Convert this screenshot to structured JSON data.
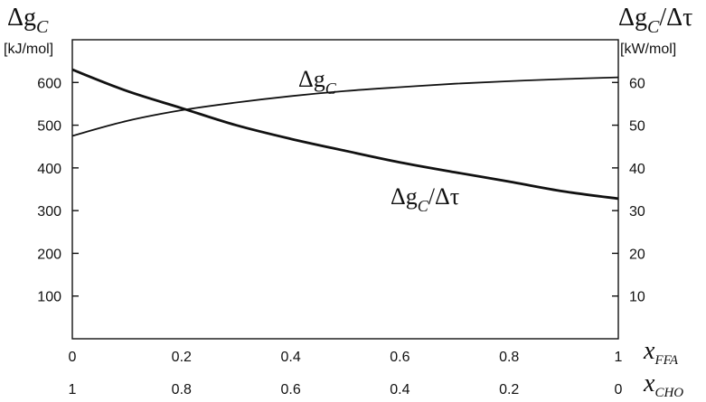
{
  "chart_data": {
    "type": "line",
    "x_primary": {
      "symbol": "x",
      "subscript": "FFA",
      "ticks": [
        0,
        0.2,
        0.4,
        0.6,
        0.8,
        1
      ],
      "tick_labels": [
        "0",
        "0.2",
        "0.4",
        "0.6",
        "0.8",
        "1"
      ],
      "range": [
        0,
        1
      ]
    },
    "x_secondary": {
      "symbol": "x",
      "subscript": "CHO",
      "tick_labels": [
        "1",
        "0.8",
        "0.6",
        "0.4",
        "0.2",
        "0"
      ]
    },
    "y_left": {
      "symbol": "Δg",
      "subscript": "C",
      "unit": "[kJ/mol]",
      "ticks": [
        100,
        200,
        300,
        400,
        500,
        600
      ],
      "tick_labels": [
        "100",
        "200",
        "300",
        "400",
        "500",
        "600"
      ],
      "range": [
        0,
        700
      ]
    },
    "y_right": {
      "symbol": "Δg",
      "subscript": "C",
      "suffix": "/Δτ",
      "unit": "[kW/mol]",
      "ticks": [
        10,
        20,
        30,
        40,
        50,
        60
      ],
      "tick_labels": [
        "10",
        "20",
        "30",
        "40",
        "50",
        "60"
      ],
      "range": [
        0,
        70
      ]
    },
    "series": [
      {
        "name": "Δg_C",
        "label_symbol": "Δg",
        "label_subscript": "C",
        "label_suffix": "",
        "axis": "left",
        "x": [
          0,
          0.1,
          0.2,
          0.3,
          0.4,
          0.5,
          0.6,
          0.7,
          0.8,
          0.9,
          1.0
        ],
        "y": [
          475,
          510,
          535,
          553,
          568,
          580,
          589,
          597,
          603,
          608,
          612
        ]
      },
      {
        "name": "Δg_C/Δτ",
        "label_symbol": "Δg",
        "label_subscript": "C",
        "label_suffix": "/Δτ",
        "axis": "right",
        "x": [
          0,
          0.1,
          0.2,
          0.3,
          0.4,
          0.5,
          0.6,
          0.7,
          0.8,
          0.9,
          1.0
        ],
        "y": [
          63.0,
          58.0,
          54.0,
          50.0,
          46.8,
          44.0,
          41.3,
          39.0,
          36.8,
          34.5,
          32.8
        ]
      }
    ],
    "grid": false,
    "colors": {
      "line": "#111111",
      "axis": "#111111",
      "background": "#ffffff"
    }
  }
}
